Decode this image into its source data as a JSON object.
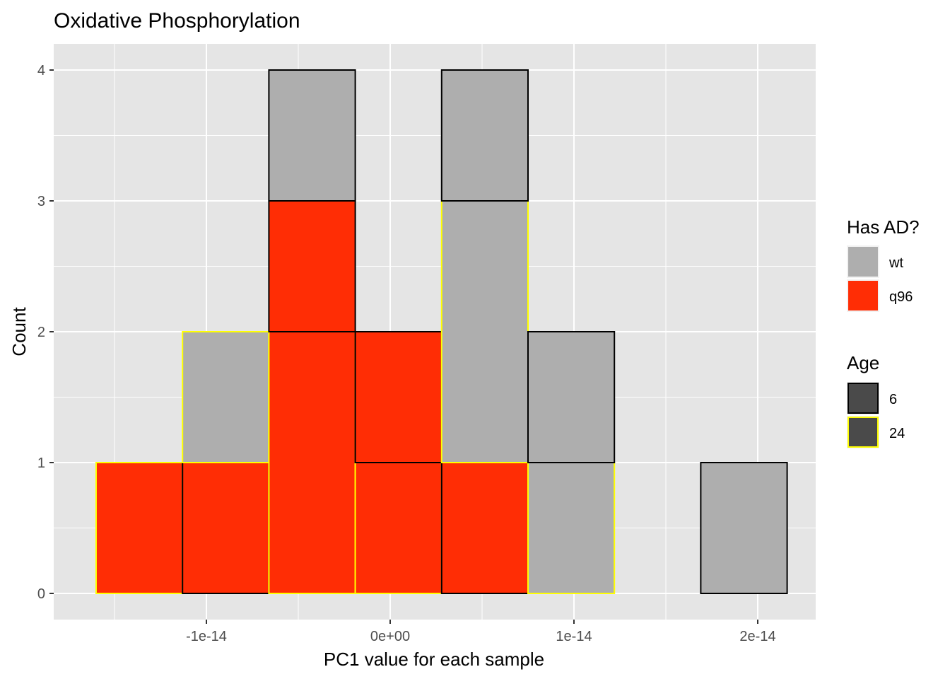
{
  "chart_data": {
    "type": "histogram",
    "title": "Oxidative Phosphorylation",
    "xlabel": "PC1 value for each sample",
    "ylabel": "Count",
    "xlim": [
      -1.85e-14,
      2.3e-14
    ],
    "ylim": [
      -0.2,
      4.2
    ],
    "x_ticks": [
      -1e-14,
      0,
      1e-14,
      2e-14
    ],
    "x_tick_labels": [
      "-1e-14",
      "0e+00",
      "1e-14",
      "2e-14"
    ],
    "y_ticks": [
      0,
      1,
      2,
      3,
      4
    ],
    "y_tick_labels": [
      "0",
      "1",
      "2",
      "3",
      "4"
    ],
    "grid": true,
    "legend_position": "right",
    "bin_edges": [
      -1.6e-14,
      -1.13e-14,
      -6.6e-15,
      -1.9e-15,
      2.8e-15,
      7.5e-15,
      1.22e-14,
      1.69e-14,
      2.16e-14
    ],
    "bars": [
      {
        "bin": 0,
        "has_ad": "q96",
        "age": "24",
        "y0": 0,
        "y1": 1
      },
      {
        "bin": 1,
        "has_ad": "q96",
        "age": "6",
        "y0": 0,
        "y1": 1
      },
      {
        "bin": 1,
        "has_ad": "wt",
        "age": "24",
        "y0": 1,
        "y1": 2
      },
      {
        "bin": 2,
        "has_ad": "q96",
        "age": "24",
        "y0": 0,
        "y1": 2
      },
      {
        "bin": 2,
        "has_ad": "q96",
        "age": "6",
        "y0": 2,
        "y1": 3
      },
      {
        "bin": 2,
        "has_ad": "wt",
        "age": "6",
        "y0": 3,
        "y1": 4
      },
      {
        "bin": 3,
        "has_ad": "q96",
        "age": "24",
        "y0": 0,
        "y1": 1
      },
      {
        "bin": 3,
        "has_ad": "q96",
        "age": "6",
        "y0": 1,
        "y1": 2
      },
      {
        "bin": 4,
        "has_ad": "q96",
        "age": "6",
        "y0": 0,
        "y1": 1
      },
      {
        "bin": 4,
        "has_ad": "wt",
        "age": "24",
        "y0": 1,
        "y1": 3
      },
      {
        "bin": 4,
        "has_ad": "wt",
        "age": "6",
        "y0": 3,
        "y1": 4
      },
      {
        "bin": 5,
        "has_ad": "wt",
        "age": "24",
        "y0": 0,
        "y1": 1
      },
      {
        "bin": 5,
        "has_ad": "wt",
        "age": "6",
        "y0": 1,
        "y1": 2
      },
      {
        "bin": 6,
        "has_ad": "wt",
        "age": "24",
        "y0": 0,
        "y1": 0
      },
      {
        "bin": 7,
        "has_ad": "wt",
        "age": "6",
        "y0": 0,
        "y1": 1
      },
      {
        "bin": 7,
        "has_ad": "wt",
        "age": "24",
        "y0": 0,
        "y1": 0
      }
    ],
    "legend_fill": {
      "title": "Has AD?",
      "items": [
        {
          "label": "wt",
          "color": "#AEAEAE"
        },
        {
          "label": "q96",
          "color": "#FF2D05"
        }
      ]
    },
    "legend_outline": {
      "title": "Age",
      "items": [
        {
          "label": "6",
          "color": "#000000"
        },
        {
          "label": "24",
          "color": "#FFFF00"
        }
      ]
    },
    "panel_background": "#E5E5E5",
    "grid_color": "#FFFFFF",
    "legend_key_fill": "#4A4A4A"
  }
}
